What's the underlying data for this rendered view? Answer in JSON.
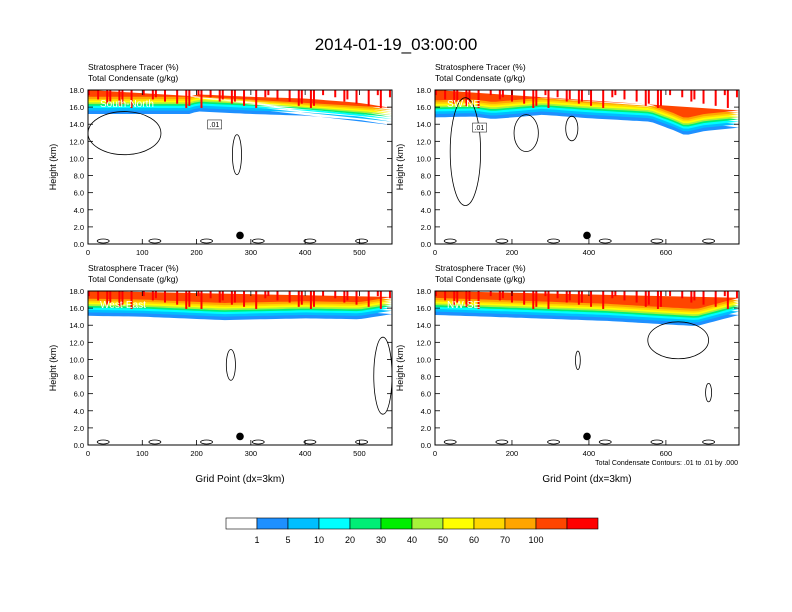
{
  "title": "2014-01-19_03:00:00",
  "footnote": "Total Condensate Contours: .01 to .01 by .000",
  "colorbar": {
    "labels": [
      "1",
      "5",
      "10",
      "20",
      "30",
      "40",
      "50",
      "60",
      "70",
      "100"
    ],
    "colors": [
      "#ffffff",
      "#1e90ff",
      "#00bfff",
      "#00ffff",
      "#00ee76",
      "#00ee00",
      "#a8f23a",
      "#ffff00",
      "#ffd700",
      "#ffa500",
      "#ff4500",
      "#ff0000"
    ]
  },
  "chart_data": [
    {
      "type": "heatmap",
      "line1": "Stratosphere Tracer   (%)",
      "line2": "Total Condensate   (g/kg)",
      "section": "South-North",
      "ylabel": "Height (km)",
      "xlabel": "",
      "xlim": [
        0,
        560
      ],
      "ylim": [
        0,
        18
      ],
      "xticks": [
        "0",
        "100",
        "200",
        "300",
        "400",
        "500"
      ],
      "yticks": [
        "0.0",
        "2.0",
        "4.0",
        "6.0",
        "8.0",
        "10.0",
        "12.0",
        "14.0",
        "16.0",
        "18.0"
      ],
      "marker": {
        "x": 280,
        "y": 1.0
      },
      "contour_label": ".01",
      "base_height_km": [
        [
          0,
          15.9
        ],
        [
          190,
          15.9
        ],
        [
          200,
          16.2
        ],
        [
          300,
          15.9
        ],
        [
          400,
          15.7
        ],
        [
          500,
          15.2
        ],
        [
          560,
          14.6
        ]
      ]
    },
    {
      "type": "heatmap",
      "line1": "Stratosphere Tracer   (%)",
      "line2": "Total Condensate   (g/kg)",
      "section": "SW-NE",
      "ylabel": "Height (km)",
      "xlabel": "",
      "xlim": [
        0,
        790
      ],
      "ylim": [
        0,
        18
      ],
      "xticks": [
        "0",
        "200",
        "400",
        "600"
      ],
      "yticks": [
        "0.0",
        "2.0",
        "4.0",
        "6.0",
        "8.0",
        "10.0",
        "12.0",
        "14.0",
        "16.0",
        "18.0"
      ],
      "marker": {
        "x": 395,
        "y": 1.0
      },
      "contour_label": ".01",
      "base_height_km": [
        [
          0,
          15.5
        ],
        [
          100,
          15.6
        ],
        [
          150,
          15.3
        ],
        [
          280,
          15.8
        ],
        [
          400,
          15.4
        ],
        [
          560,
          15.0
        ],
        [
          620,
          14.0
        ],
        [
          650,
          13.4
        ],
        [
          700,
          13.9
        ],
        [
          790,
          14.3
        ]
      ]
    },
    {
      "type": "heatmap",
      "line1": "Stratosphere Tracer   (%)",
      "line2": "Total Condensate   (g/kg)",
      "section": "West-East",
      "ylabel": "Height (km)",
      "xlabel": "Grid Point (dx=3km)",
      "xlim": [
        0,
        560
      ],
      "ylim": [
        0,
        18
      ],
      "xticks": [
        "0",
        "100",
        "200",
        "300",
        "400",
        "500"
      ],
      "yticks": [
        "0.0",
        "2.0",
        "4.0",
        "6.0",
        "8.0",
        "10.0",
        "12.0",
        "14.0",
        "16.0",
        "18.0"
      ],
      "marker": {
        "x": 280,
        "y": 1.0
      },
      "contour_label": "",
      "base_height_km": [
        [
          0,
          15.8
        ],
        [
          100,
          15.7
        ],
        [
          250,
          15.3
        ],
        [
          400,
          15.5
        ],
        [
          500,
          15.4
        ],
        [
          560,
          16.0
        ]
      ]
    },
    {
      "type": "heatmap",
      "line1": "Stratosphere Tracer   (%)",
      "line2": "Total Condensate   (g/kg)",
      "section": "NW-SE",
      "ylabel": "Height (km)",
      "xlabel": "Grid Point (dx=3km)",
      "xlim": [
        0,
        790
      ],
      "ylim": [
        0,
        18
      ],
      "xticks": [
        "0",
        "200",
        "400",
        "600"
      ],
      "yticks": [
        "0.0",
        "2.0",
        "4.0",
        "6.0",
        "8.0",
        "10.0",
        "12.0",
        "14.0",
        "16.0",
        "18.0"
      ],
      "marker": {
        "x": 395,
        "y": 1.0
      },
      "contour_label": "",
      "base_height_km": [
        [
          0,
          15.9
        ],
        [
          200,
          15.6
        ],
        [
          450,
          15.2
        ],
        [
          600,
          14.8
        ],
        [
          680,
          14.6
        ],
        [
          790,
          15.9
        ]
      ]
    }
  ]
}
